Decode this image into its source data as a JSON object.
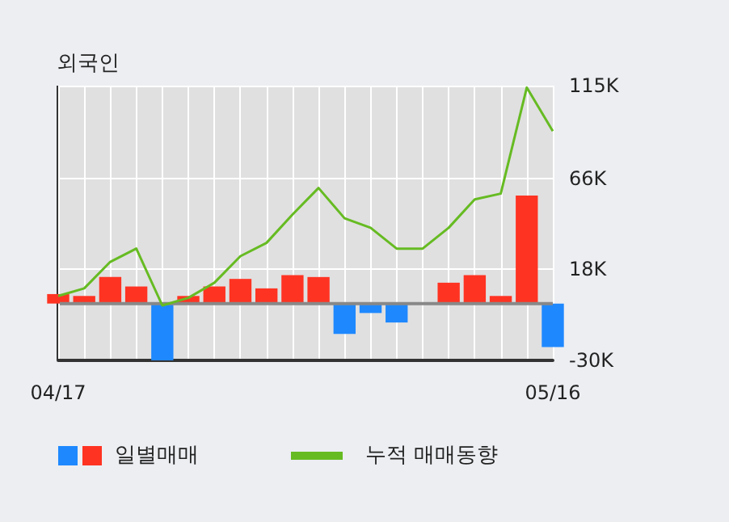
{
  "chart_data": {
    "type": "bar",
    "title": "외국인",
    "categories": [
      "04/17",
      null,
      null,
      null,
      null,
      null,
      null,
      null,
      null,
      null,
      null,
      null,
      null,
      null,
      null,
      null,
      null,
      null,
      null,
      "05/16"
    ],
    "series": [
      {
        "name": "일별매매",
        "colors": [
          "#ff3322",
          "#ff3322",
          "#ff3322",
          "#ff3322",
          "#1e88ff",
          "#ff3322",
          "#ff3322",
          "#ff3322",
          "#ff3322",
          "#ff3322",
          "#ff3322",
          "#1e88ff",
          "#1e88ff",
          "#1e88ff",
          "#ff3322",
          "#ff3322",
          "#ff3322",
          "#ff3322",
          "#ff3322",
          "#1e88ff"
        ],
        "values": [
          5,
          4,
          14,
          9,
          -30,
          4,
          9,
          13,
          8,
          15,
          14,
          -16,
          -5,
          -10,
          null,
          11,
          15,
          4,
          57,
          -23
        ]
      },
      {
        "name": "누적 매매동향",
        "type": "line",
        "color": "#66bb22",
        "values": [
          4,
          8,
          22,
          29,
          -1,
          3,
          11,
          25,
          32,
          47,
          61,
          45,
          40,
          29,
          29,
          40,
          55,
          58,
          114,
          91
        ]
      }
    ],
    "ylim": [
      -30,
      115
    ],
    "yticks": [
      {
        "value": -30,
        "label": "-30K"
      },
      {
        "value": 18,
        "label": "18K"
      },
      {
        "value": 66,
        "label": "66K"
      },
      {
        "value": 115,
        "label": "115K"
      }
    ],
    "grid": true,
    "legend": "bottom",
    "marker": "none"
  }
}
